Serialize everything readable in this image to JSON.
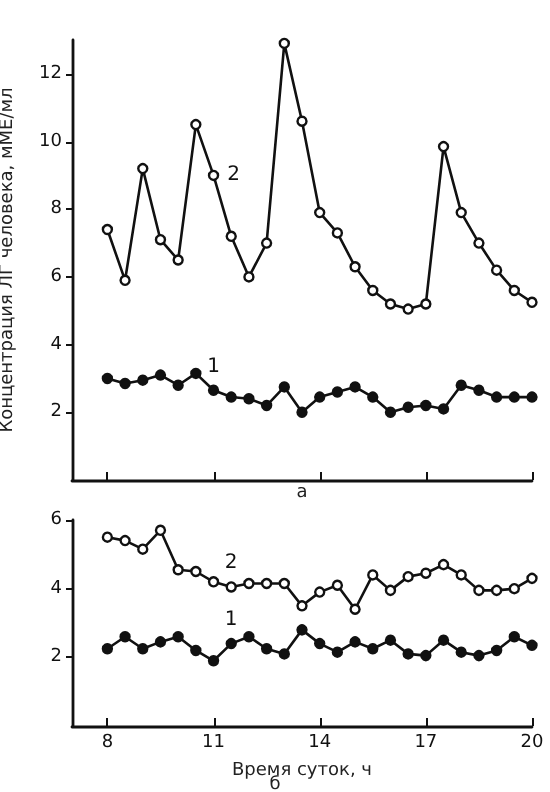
{
  "chart_data": [
    {
      "type": "line",
      "xlabel": "а",
      "ylabel": "Концентрация ЛГ человека, мМЕ/мл",
      "x": [
        8,
        8.5,
        9,
        9.5,
        10,
        10.5,
        11,
        11.5,
        12,
        12.5,
        13,
        13.5,
        14,
        14.5,
        15,
        15.5,
        16,
        16.5,
        17,
        17.5,
        18,
        18.5,
        19,
        19.5,
        20
      ],
      "series": [
        {
          "name": "1",
          "color": "#111111",
          "values": [
            3.0,
            2.85,
            2.95,
            3.1,
            2.8,
            3.15,
            2.65,
            2.45,
            2.4,
            2.2,
            2.75,
            2.0,
            2.45,
            2.6,
            2.75,
            2.45,
            2.0,
            2.15,
            2.2,
            2.1,
            2.8,
            2.65,
            2.45,
            2.45,
            2.45
          ]
        },
        {
          "name": "2",
          "color": "#111111",
          "values": [
            7.4,
            5.9,
            9.2,
            7.1,
            6.5,
            10.5,
            9.0,
            7.2,
            6.0,
            7.0,
            12.9,
            10.6,
            7.9,
            7.3,
            6.3,
            5.6,
            5.2,
            5.05,
            5.2,
            9.85,
            7.9,
            7.0,
            6.2,
            5.6,
            5.25
          ]
        }
      ],
      "xlim": [
        7,
        20
      ],
      "xticks": [
        {
          "value": 8,
          "label": null
        },
        {
          "value": 11,
          "label": null
        },
        {
          "value": 14,
          "label": null
        },
        {
          "value": 17,
          "label": null
        },
        {
          "value": 20,
          "label": null
        }
      ],
      "ylim": [
        0,
        13
      ],
      "yticks": [
        2,
        4,
        6,
        8,
        10,
        12
      ],
      "tick_labels": "y",
      "grid": false,
      "legend": false,
      "marker": "circle",
      "line_style": "solid"
    },
    {
      "type": "line",
      "xlabel": "Время суток, ч",
      "annotations": [
        "б"
      ],
      "x": [
        8,
        8.5,
        9,
        9.5,
        10,
        10.5,
        11,
        11.5,
        12,
        12.5,
        13,
        13.5,
        14,
        14.5,
        15,
        15.5,
        16,
        16.5,
        17,
        17.5,
        18,
        18.5,
        19,
        19.5,
        20
      ],
      "series": [
        {
          "name": "1",
          "color": "#111111",
          "values": [
            2.25,
            2.6,
            2.25,
            2.45,
            2.6,
            2.2,
            1.9,
            2.4,
            2.6,
            2.25,
            2.1,
            2.8,
            2.4,
            2.15,
            2.45,
            2.25,
            2.5,
            2.1,
            2.05,
            2.5,
            2.15,
            2.05,
            2.2,
            2.6,
            2.35
          ]
        },
        {
          "name": "2",
          "color": "#111111",
          "values": [
            5.5,
            5.4,
            5.15,
            5.7,
            4.55,
            4.5,
            4.2,
            4.05,
            4.15,
            4.15,
            4.15,
            3.5,
            3.9,
            4.1,
            3.4,
            4.4,
            3.95,
            4.35,
            4.45,
            4.7,
            4.4,
            3.95,
            3.95,
            4.0,
            4.3
          ]
        }
      ],
      "xlim": [
        7,
        20
      ],
      "xticks": [
        8,
        11,
        14,
        17,
        20
      ],
      "ylim": [
        0,
        6
      ],
      "yticks": [
        2,
        4,
        6
      ],
      "grid": false,
      "legend": false,
      "marker": "circle",
      "line_style": "solid"
    }
  ]
}
